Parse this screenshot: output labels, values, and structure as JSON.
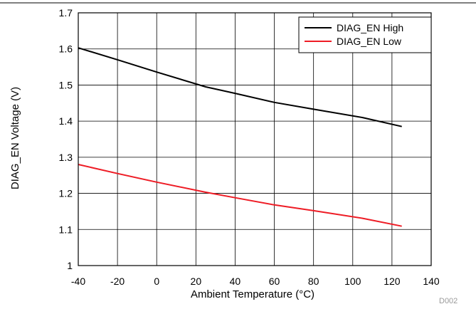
{
  "chart_data": {
    "type": "line",
    "xlabel": "Ambient Temperature (°C)",
    "ylabel": "DIAG_EN Voltage (V)",
    "xlim": [
      -40,
      140
    ],
    "ylim": [
      1.0,
      1.7
    ],
    "x_ticks": [
      "-40",
      "-20",
      "0",
      "20",
      "40",
      "60",
      "80",
      "100",
      "120",
      "140"
    ],
    "y_ticks": [
      "1",
      "1.1",
      "1.2",
      "1.3",
      "1.4",
      "1.5",
      "1.6",
      "1.7"
    ],
    "grid": true,
    "legend_position": "top-right",
    "series": [
      {
        "name": "DIAG_EN High",
        "color": "#000000",
        "x": [
          -40,
          -20,
          0,
          25,
          40,
          60,
          80,
          105,
          125
        ],
        "y": [
          1.603,
          1.57,
          1.536,
          1.495,
          1.477,
          1.452,
          1.433,
          1.41,
          1.385
        ]
      },
      {
        "name": "DIAG_EN Low",
        "color": "#ee1c25",
        "x": [
          -40,
          -20,
          0,
          25,
          40,
          60,
          80,
          105,
          125
        ],
        "y": [
          1.28,
          1.255,
          1.231,
          1.203,
          1.188,
          1.168,
          1.152,
          1.131,
          1.109
        ]
      }
    ],
    "figure_code": "D002"
  }
}
